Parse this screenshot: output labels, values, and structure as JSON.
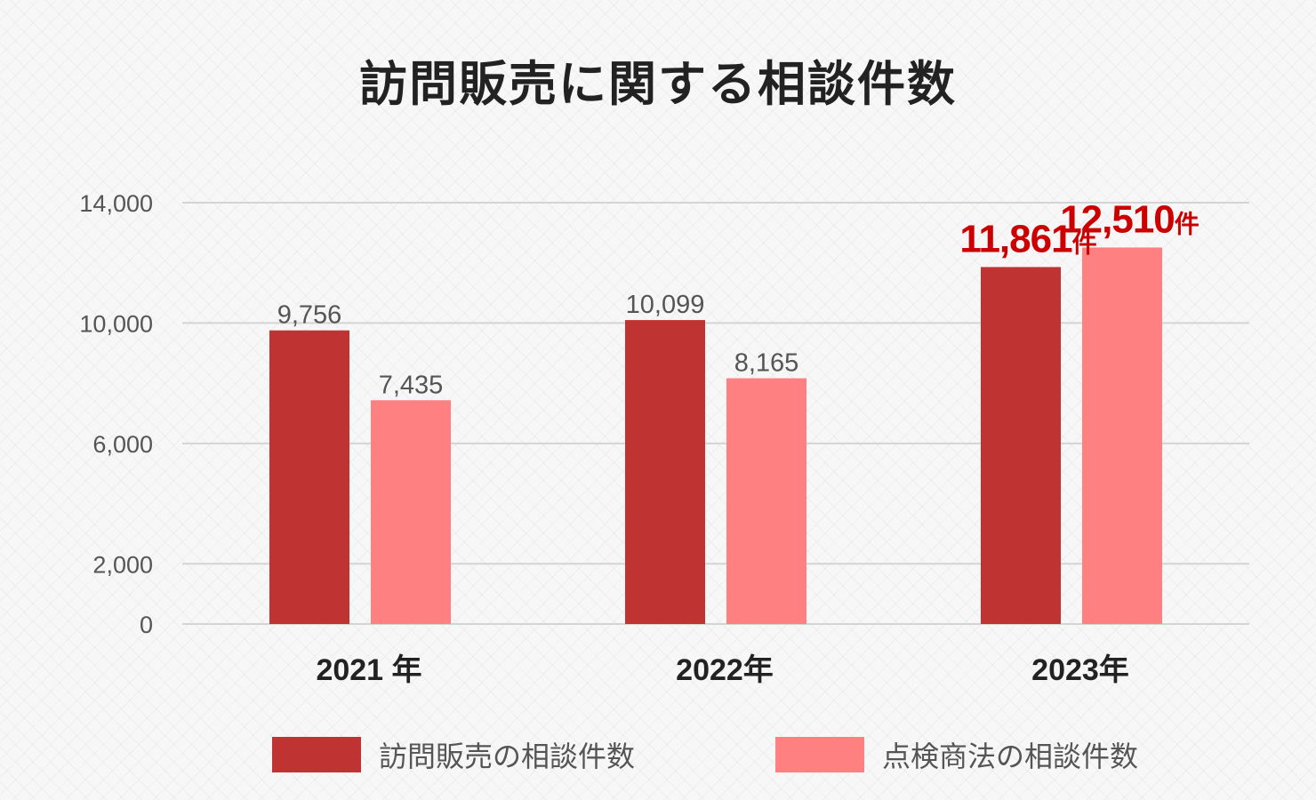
{
  "chart_data": {
    "type": "bar",
    "title": "訪問販売に関する相談件数",
    "categories": [
      "2021 年",
      "2022年",
      "2023年"
    ],
    "series": [
      {
        "name": "訪問販売の相談件数",
        "values": [
          9756,
          10099,
          11861
        ],
        "labels": [
          "9,756",
          "10,099",
          "11,861"
        ],
        "color": "#c03333"
      },
      {
        "name": "点検商法の相談件数",
        "values": [
          7435,
          8165,
          12510
        ],
        "labels": [
          "7,435",
          "8,165",
          "12,510"
        ],
        "color": "#ff8080"
      }
    ],
    "highlight_category_index": 2,
    "highlight_unit": "件",
    "highlight_color": "#cc0000",
    "yticks": [
      0,
      2000,
      6000,
      10000,
      14000
    ],
    "ytick_labels": [
      "0",
      "2,000",
      "6,000",
      "10,000",
      "14,000"
    ],
    "ylim": [
      0,
      14000
    ],
    "grid": true,
    "legend": "bottom",
    "xlabel": "",
    "ylabel": ""
  }
}
